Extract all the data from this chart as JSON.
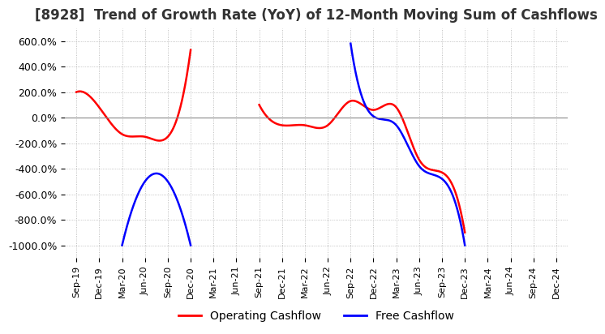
{
  "title": "[8928]  Trend of Growth Rate (YoY) of 12-Month Moving Sum of Cashflows",
  "title_fontsize": 12,
  "ylim": [
    -1100,
    700
  ],
  "yticks": [
    600,
    400,
    200,
    0,
    -200,
    -400,
    -600,
    -800,
    -1000
  ],
  "ytick_labels": [
    "600.0%",
    "400.0%",
    "200.0%",
    "0.0%",
    "-200.0%",
    "-400.0%",
    "-600.0%",
    "-800.0%",
    "-1000.0%"
  ],
  "background_color": "#ffffff",
  "grid_color": "#b0b0b0",
  "legend_labels": [
    "Operating Cashflow",
    "Free Cashflow"
  ],
  "legend_colors": [
    "#ff0000",
    "#0000ff"
  ],
  "x_labels": [
    "Sep-19",
    "Dec-19",
    "Mar-20",
    "Jun-20",
    "Sep-20",
    "Dec-20",
    "Mar-21",
    "Jun-21",
    "Sep-21",
    "Dec-21",
    "Mar-22",
    "Jun-22",
    "Sep-22",
    "Dec-22",
    "Mar-23",
    "Jun-23",
    "Sep-23",
    "Dec-23",
    "Mar-24",
    "Jun-24",
    "Sep-24",
    "Dec-24"
  ],
  "operating_cashflow": [
    200,
    80,
    -130,
    -150,
    -150,
    530,
    null,
    null,
    100,
    -60,
    -60,
    -60,
    130,
    60,
    80,
    -330,
    -430,
    -900,
    null,
    null,
    null,
    null
  ],
  "free_cashflow": [
    null,
    null,
    -1000,
    -500,
    -500,
    -1000,
    null,
    null,
    null,
    null,
    null,
    null,
    580,
    10,
    -60,
    -380,
    -480,
    -1000,
    null,
    null,
    null,
    null
  ]
}
